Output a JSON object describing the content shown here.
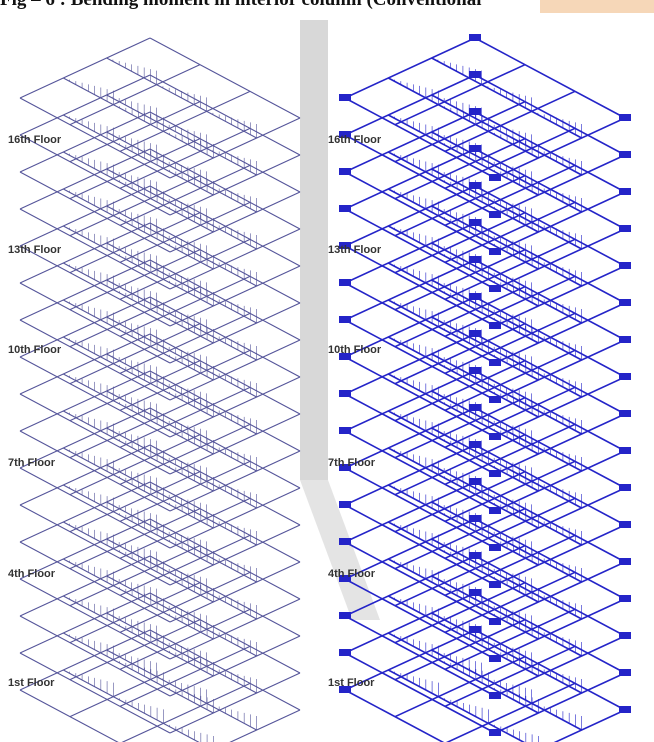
{
  "title": "Fig – 6 : Bending moment in interior column (Conventional",
  "left_panel": {
    "floor_labels": [
      "16th Floor",
      "13th Floor",
      "10th Floor",
      "7th Floor",
      "4th Floor",
      "1st Floor"
    ]
  },
  "right_panel": {
    "floor_labels": [
      "16th Floor",
      "13th Floor",
      "10th Floor",
      "7th Floor",
      "4th Floor",
      "1st Floor"
    ]
  }
}
